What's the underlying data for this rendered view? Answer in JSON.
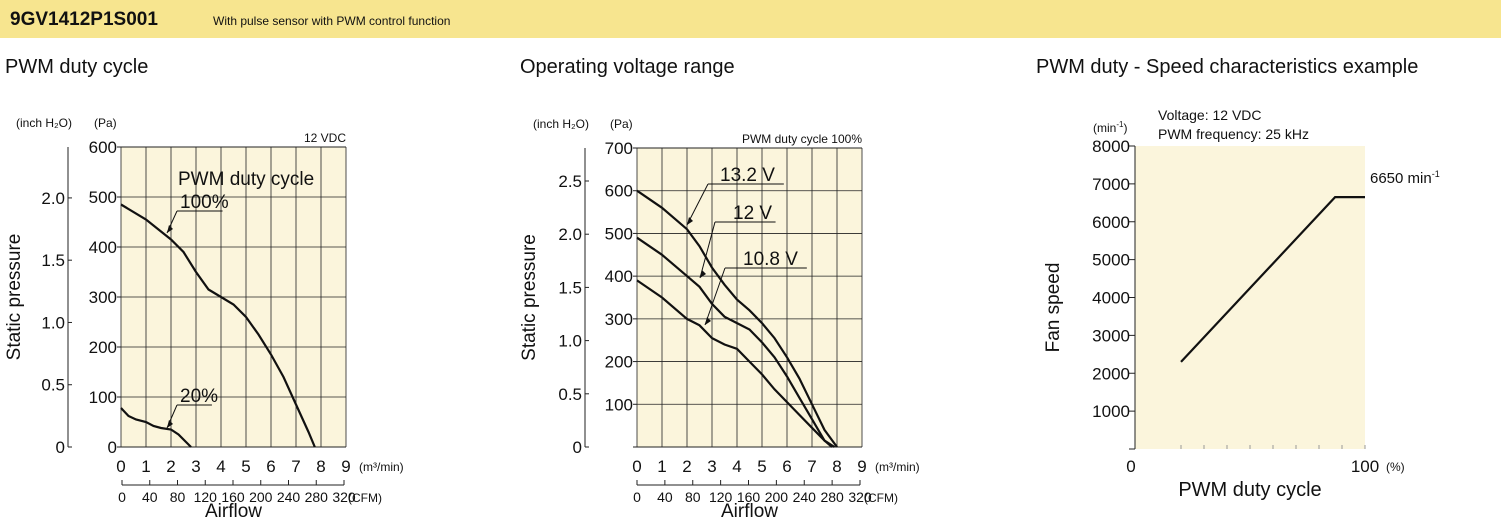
{
  "header": {
    "model": "9GV1412P1S001",
    "subtitle": "With pulse sensor with PWM control function"
  },
  "colors": {
    "banner": "#f7e58f",
    "plot_bg": "#fbf5dc",
    "curve": "#111111"
  },
  "chart_data": [
    {
      "type": "line",
      "title": "PWM duty cycle",
      "condition": "12 VDC",
      "legend_title": "PWM duty cycle",
      "xlabel": "Airflow",
      "ylabel": "Static pressure",
      "x_unit": "(m³/min)",
      "x2_unit": "(CFM)",
      "y_unit": "(Pa)",
      "y2_unit": "(inch H₂O)",
      "xlim": [
        0,
        9
      ],
      "ylim": [
        0,
        600
      ],
      "x_ticks": [
        "0",
        "1",
        "2",
        "3",
        "4",
        "5",
        "6",
        "7",
        "8",
        "9"
      ],
      "x2_ticks": [
        "0",
        "40",
        "80",
        "120",
        "160",
        "200",
        "240",
        "280",
        "320"
      ],
      "y_ticks": [
        "0",
        "100",
        "200",
        "300",
        "400",
        "500",
        "600"
      ],
      "y2_ticks": [
        "0",
        "0.5",
        "1.0",
        "1.5",
        "2.0"
      ],
      "grid": true,
      "series": [
        {
          "name": "100%",
          "x": [
            0,
            1,
            2,
            2.5,
            3,
            3.5,
            4,
            4.5,
            5,
            5.5,
            6,
            6.5,
            7,
            7.5,
            7.75
          ],
          "y": [
            485,
            455,
            415,
            390,
            350,
            315,
            300,
            285,
            260,
            225,
            185,
            140,
            85,
            30,
            0
          ]
        },
        {
          "name": "20%",
          "x": [
            0,
            0.3,
            0.6,
            1,
            1.3,
            1.6,
            2,
            2.3,
            2.6,
            2.8
          ],
          "y": [
            78,
            62,
            55,
            50,
            42,
            38,
            35,
            25,
            10,
            0
          ]
        }
      ]
    },
    {
      "type": "line",
      "title": "Operating voltage range",
      "condition": "PWM duty cycle 100%",
      "xlabel": "Airflow",
      "ylabel": "Static pressure",
      "x_unit": "(m³/min)",
      "x2_unit": "(CFM)",
      "y_unit": "(Pa)",
      "y2_unit": "(inch H₂O)",
      "xlim": [
        0,
        9
      ],
      "ylim": [
        0,
        700
      ],
      "x_ticks": [
        "0",
        "1",
        "2",
        "3",
        "4",
        "5",
        "6",
        "7",
        "8",
        "9"
      ],
      "x2_ticks": [
        "0",
        "40",
        "80",
        "120",
        "160",
        "200",
        "240",
        "280",
        "320"
      ],
      "y_ticks": [
        "",
        "100",
        "200",
        "300",
        "400",
        "500",
        "600",
        "700"
      ],
      "y2_ticks": [
        "0",
        "0.5",
        "1.0",
        "1.5",
        "2.0",
        "2.5"
      ],
      "grid": true,
      "series": [
        {
          "name": "13.2 V",
          "x": [
            0,
            1,
            2,
            2.5,
            3,
            3.5,
            4,
            4.5,
            5,
            5.5,
            6,
            6.5,
            7,
            7.5,
            8
          ],
          "y": [
            600,
            560,
            510,
            470,
            420,
            380,
            345,
            320,
            290,
            255,
            210,
            160,
            100,
            40,
            0
          ]
        },
        {
          "name": "12 V",
          "x": [
            0,
            1,
            2,
            2.5,
            3,
            3.5,
            4,
            4.5,
            5,
            5.5,
            6,
            6.5,
            7,
            7.5,
            7.9
          ],
          "y": [
            490,
            450,
            400,
            375,
            335,
            305,
            290,
            275,
            245,
            210,
            165,
            115,
            65,
            15,
            0
          ]
        },
        {
          "name": "10.8 V",
          "x": [
            0,
            1,
            2,
            2.5,
            3,
            3.5,
            4,
            4.5,
            5,
            5.5,
            6,
            6.5,
            7,
            7.5,
            7.8
          ],
          "y": [
            390,
            350,
            300,
            285,
            255,
            240,
            230,
            200,
            170,
            135,
            105,
            75,
            45,
            15,
            0
          ]
        }
      ]
    },
    {
      "type": "line",
      "title": "PWM duty - Speed characteristics example",
      "annotation_lines": [
        "Voltage: 12 VDC",
        "PWM frequency: 25 kHz"
      ],
      "end_label": "6650 min",
      "end_label_sup": "-1",
      "xlabel": "PWM duty cycle",
      "ylabel": "Fan speed",
      "x_unit": "(%)",
      "y_unit": "(min",
      "y_unit_sup": "-1",
      "y_unit_close": ")",
      "xlim": [
        0,
        100
      ],
      "ylim": [
        0,
        8000
      ],
      "x_ticks": [
        "0",
        "100"
      ],
      "y_ticks": [
        "",
        "1000",
        "2000",
        "3000",
        "4000",
        "5000",
        "6000",
        "7000",
        "8000"
      ],
      "grid": false,
      "series": [
        {
          "x": [
            20,
            87,
            100
          ],
          "y": [
            2300,
            6650,
            6650
          ]
        }
      ]
    }
  ]
}
